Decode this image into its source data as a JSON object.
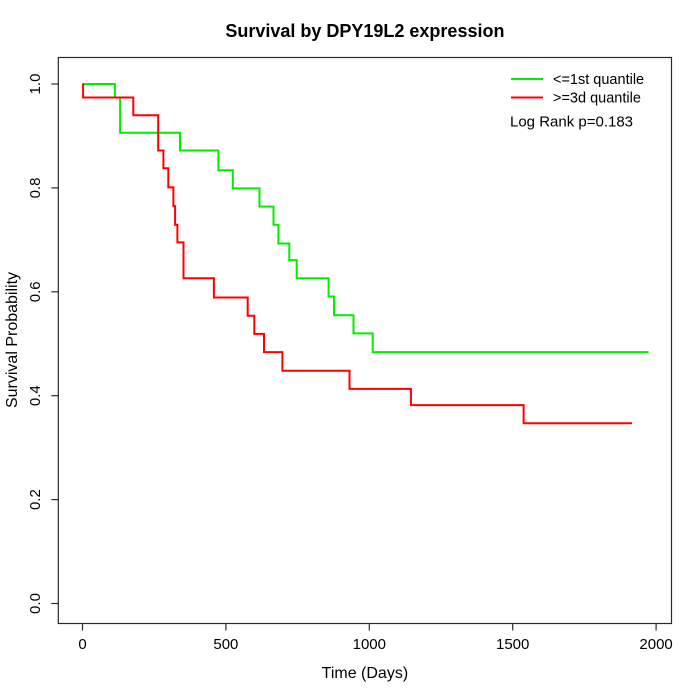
{
  "figure": {
    "background": "#ffffff",
    "axis_color": "#2a2a2a"
  },
  "chart_data": {
    "type": "line",
    "chart_style": "kaplan-meier-survival-step",
    "title": "Survival by DPY19L2 expression",
    "xlabel": "Time (Days)",
    "ylabel": "Survival Probability",
    "grid": false,
    "legend_position": "top-right",
    "annotation": "Log Rank p=0.183",
    "x_axis": {
      "ticks": [
        0,
        500,
        1000,
        1500,
        2000
      ],
      "tick_labels": [
        "0",
        "500",
        "1000",
        "1500",
        "2000"
      ],
      "range": [
        -85,
        2050
      ]
    },
    "y_axis": {
      "ticks": [
        0,
        0.2,
        0.4,
        0.6,
        0.8,
        1.0
      ],
      "tick_labels": [
        "0.0",
        "0.2",
        "0.4",
        "0.6",
        "0.8",
        "1.0"
      ],
      "range": [
        -0.04,
        1.04
      ]
    },
    "series": [
      {
        "name": "<=1st quantile",
        "color": "#00ee00",
        "start": [
          0,
          1.0
        ],
        "steps": [
          [
            113,
            0.974
          ],
          [
            131,
            0.906
          ],
          [
            340,
            0.872
          ],
          [
            474,
            0.834
          ],
          [
            524,
            0.799
          ],
          [
            617,
            0.764
          ],
          [
            666,
            0.729
          ],
          [
            683,
            0.693
          ],
          [
            721,
            0.661
          ],
          [
            747,
            0.626
          ],
          [
            858,
            0.591
          ],
          [
            877,
            0.555
          ],
          [
            945,
            0.52
          ],
          [
            1012,
            0.484
          ]
        ],
        "end_day": 1974,
        "final_probability": 0.484
      },
      {
        "name": ">=3d quantile",
        "color": "#ff0000",
        "start": [
          0,
          1.0
        ],
        "steps": [
          [
            2,
            0.974
          ],
          [
            177,
            0.94
          ],
          [
            264,
            0.872
          ],
          [
            282,
            0.838
          ],
          [
            299,
            0.801
          ],
          [
            317,
            0.765
          ],
          [
            323,
            0.729
          ],
          [
            331,
            0.695
          ],
          [
            352,
            0.626
          ],
          [
            458,
            0.589
          ],
          [
            576,
            0.554
          ],
          [
            599,
            0.519
          ],
          [
            633,
            0.484
          ],
          [
            697,
            0.448
          ],
          [
            931,
            0.413
          ],
          [
            1145,
            0.382
          ],
          [
            1538,
            0.347
          ]
        ],
        "end_day": 1916,
        "final_probability": 0.347
      }
    ]
  }
}
